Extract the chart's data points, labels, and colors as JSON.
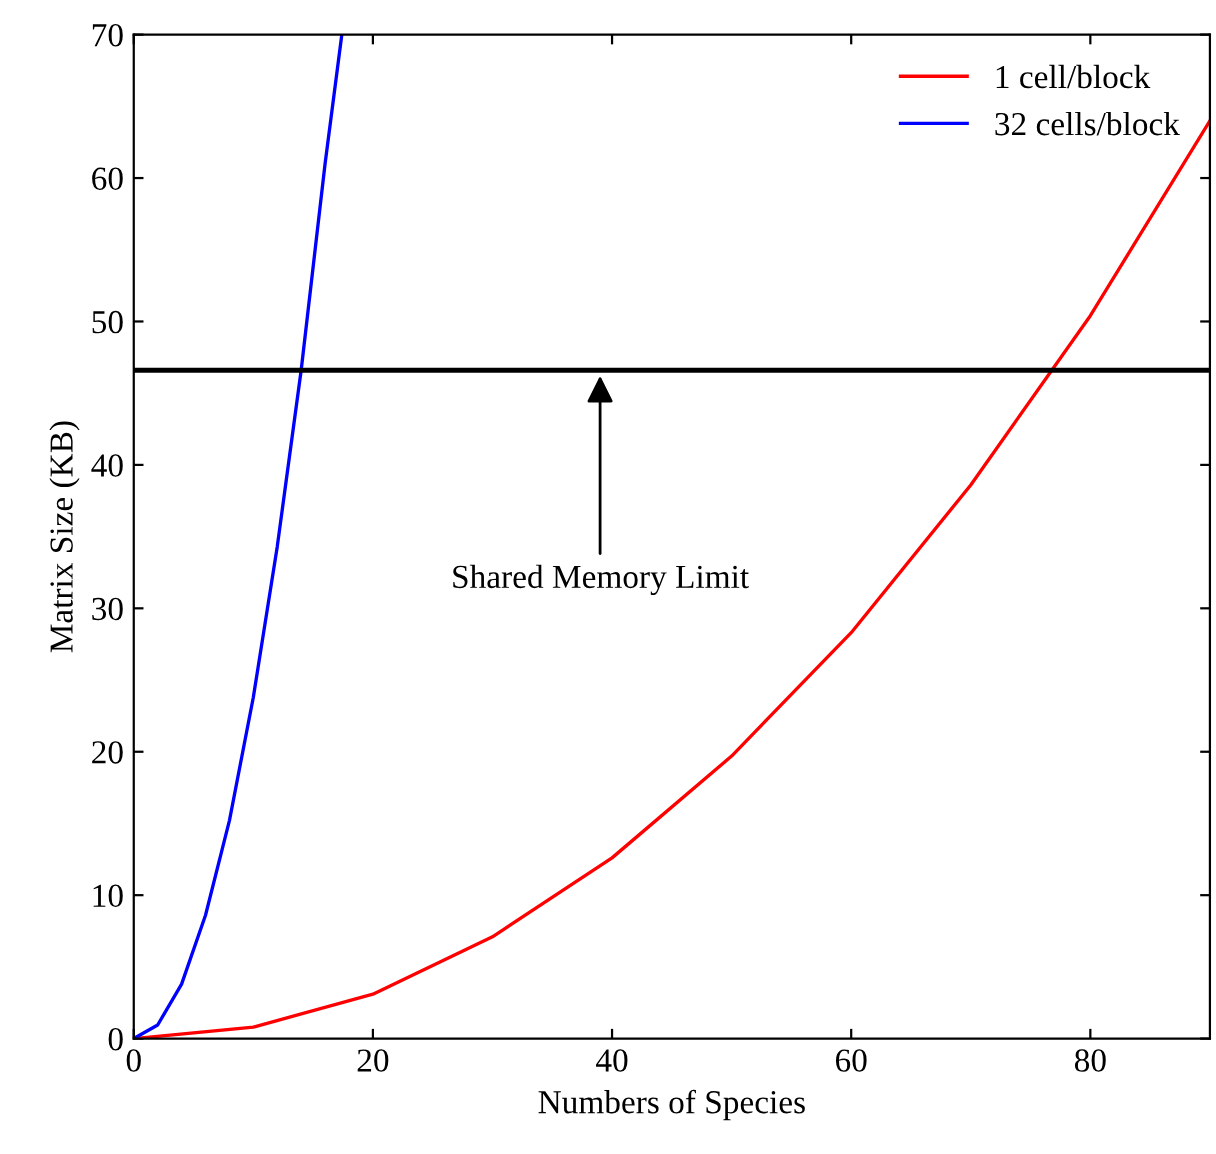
{
  "chart_data": {
    "type": "line",
    "xlabel": "Numbers of Species",
    "ylabel": "Matrix Size (KB)",
    "xlim": [
      0,
      90
    ],
    "ylim": [
      0,
      70
    ],
    "xticks": [
      0,
      20,
      40,
      60,
      80
    ],
    "yticks": [
      0,
      10,
      20,
      30,
      40,
      50,
      60,
      70
    ],
    "series": [
      {
        "name": "1 cell/block",
        "color": "#ff0000",
        "x": [
          0,
          10,
          20,
          30,
          40,
          50,
          60,
          70,
          80,
          90
        ],
        "values": [
          0,
          0.8,
          3.1,
          7.1,
          12.6,
          19.7,
          28.3,
          38.6,
          50.4,
          64
        ]
      },
      {
        "name": "32 cells/block",
        "color": "#0000ff",
        "x": [
          0,
          2,
          4,
          6,
          8,
          10,
          12,
          14,
          16,
          17.4
        ],
        "values": [
          0,
          0.95,
          3.8,
          8.6,
          15.2,
          23.8,
          34.3,
          46.6,
          61,
          70
        ]
      }
    ],
    "ref_lines": [
      {
        "axis": "y",
        "value": 46.6,
        "color": "#000000"
      }
    ],
    "annotations": [
      {
        "text": "Shared Memory Limit",
        "x": 39,
        "y": 46.6
      }
    ],
    "legend": "top right",
    "grid": false
  }
}
